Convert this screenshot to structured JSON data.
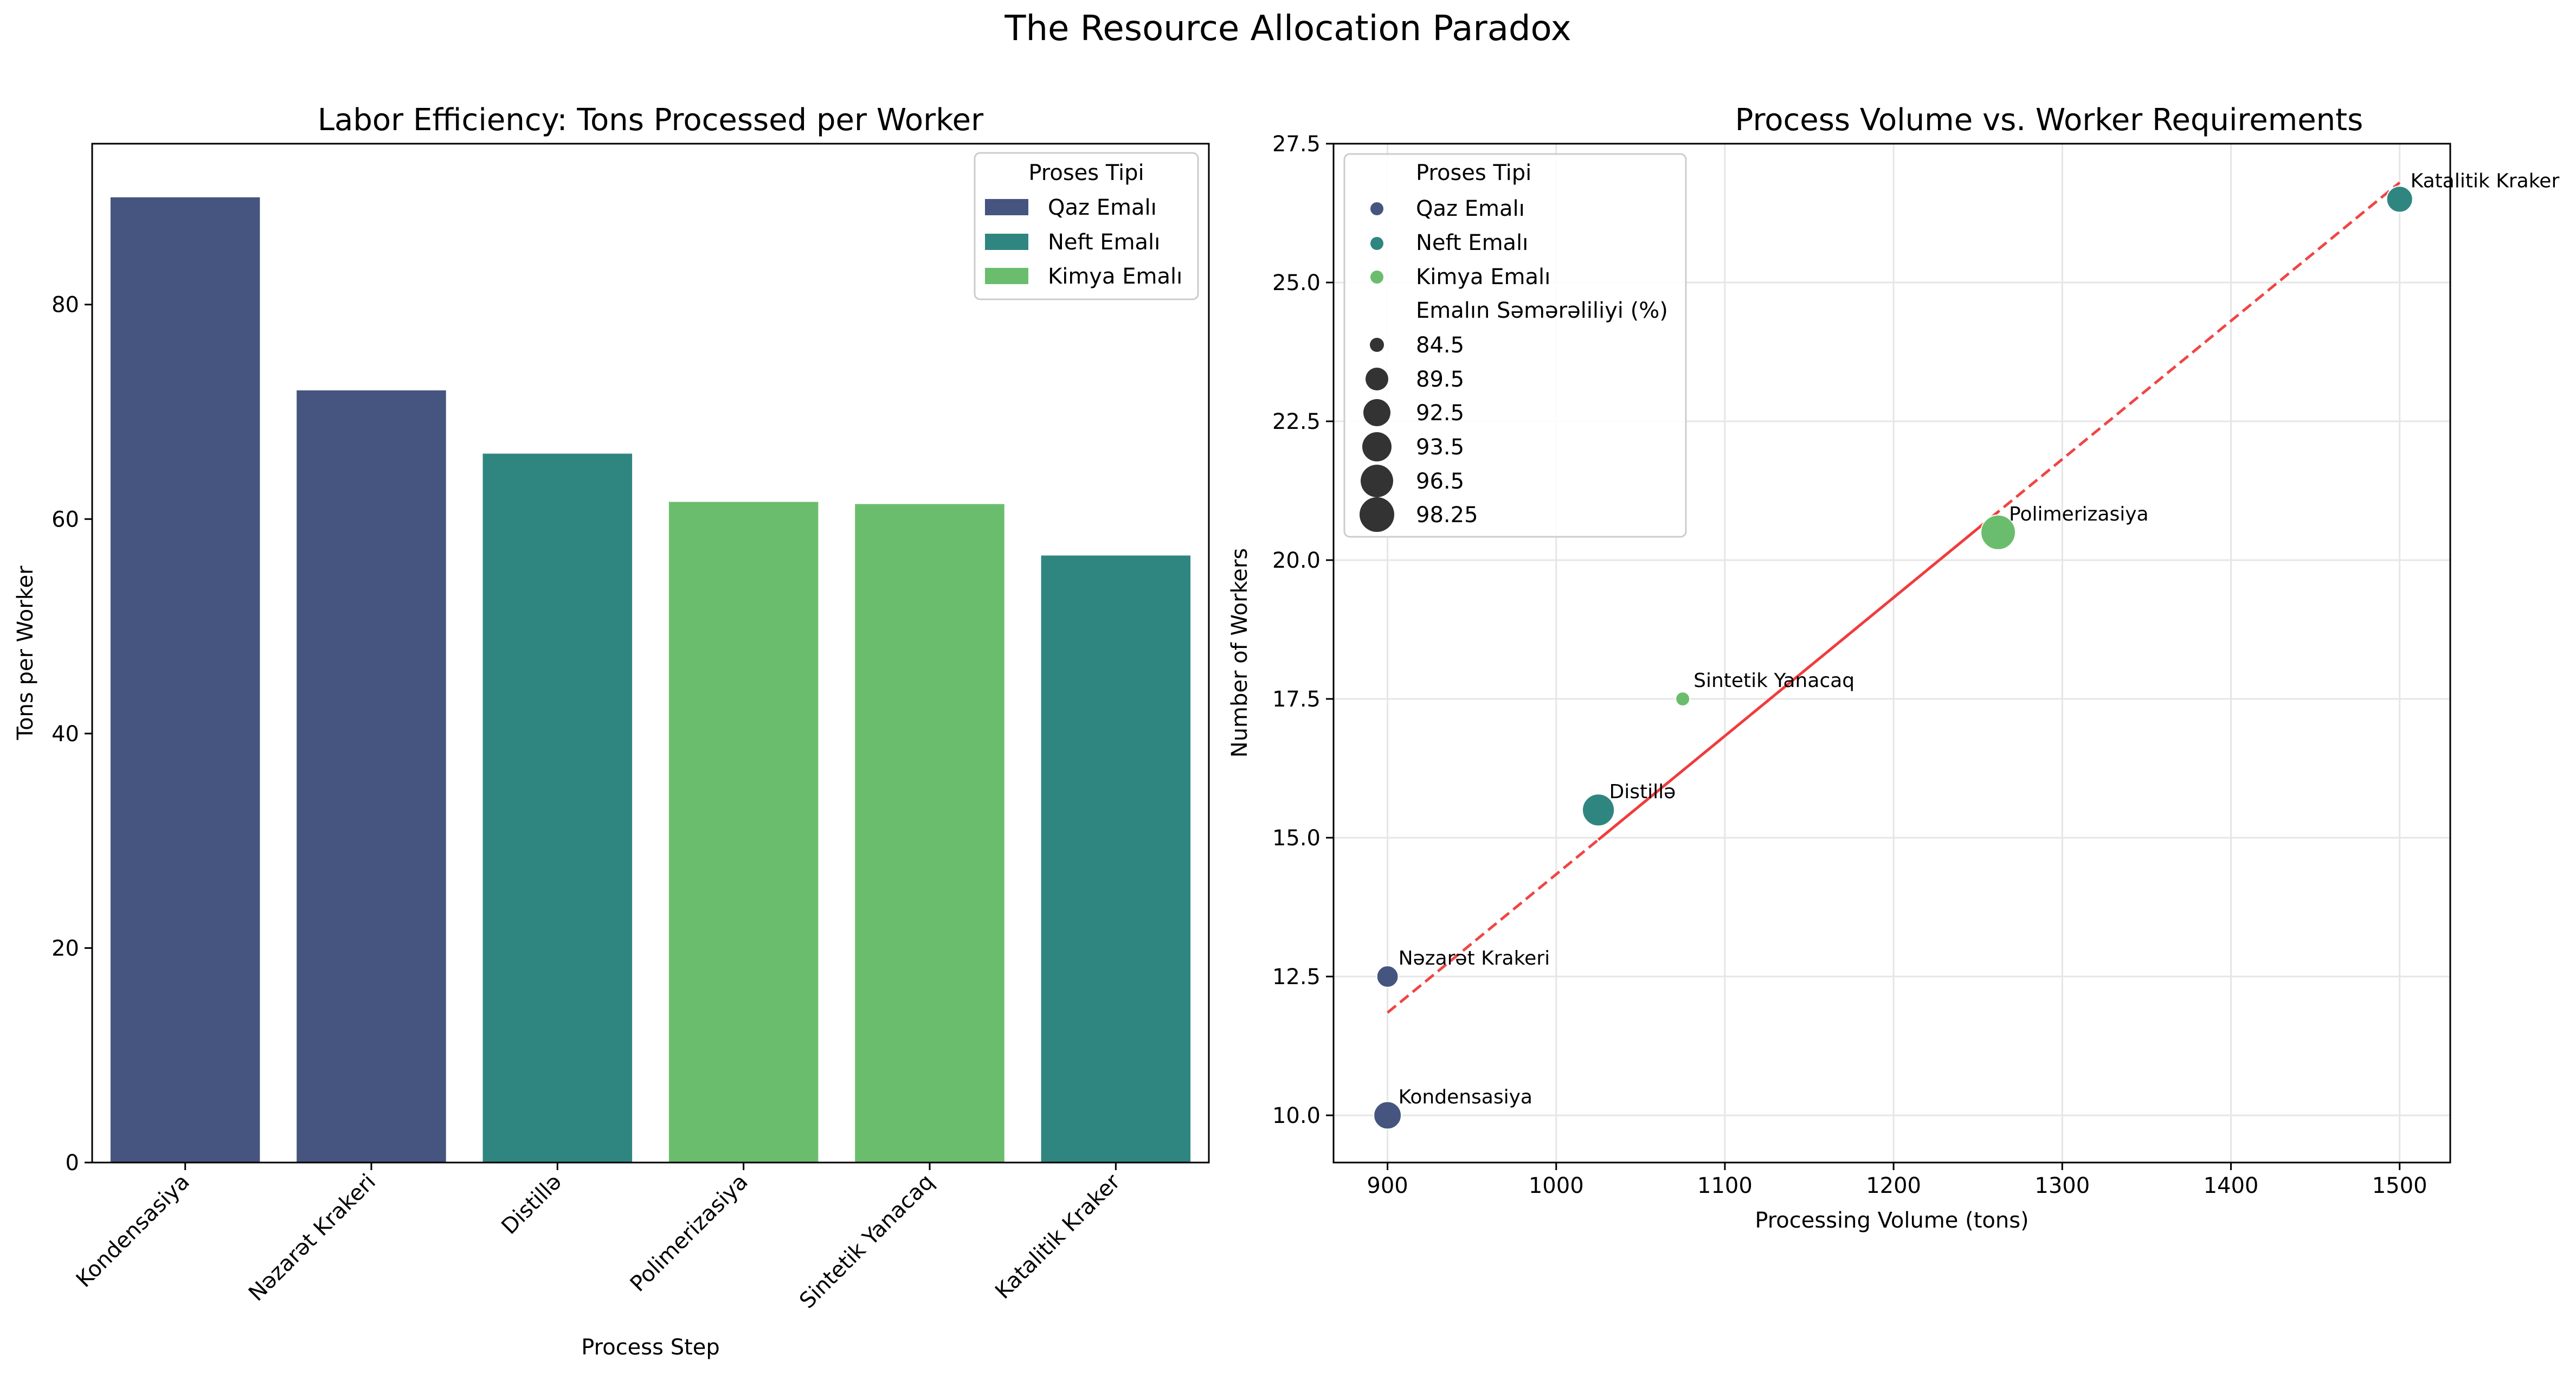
{
  "suptitle": "The Resource Allocation Paradox",
  "colors": {
    "qaz": "#46557f",
    "neft": "#2f8680",
    "kimya": "#6bbd6e",
    "trend_solid": "#f03c3c",
    "trend_dashed": "#f03c3c",
    "grid": "#e6e6e6"
  },
  "chart_data": [
    {
      "type": "bar",
      "title": "Labor Efficiency: Tons Processed per Worker",
      "xlabel": "Process Step",
      "ylabel": "Tons per Worker",
      "ylim": [
        0,
        95
      ],
      "yticks": [
        0,
        20,
        40,
        60,
        80
      ],
      "categories": [
        "Kondensasiya",
        "Nəzarət Krakeri",
        "Distillə",
        "Polimerizasiya",
        "Sintetik Yanacaq",
        "Katalitik Kraker"
      ],
      "values": [
        90.0,
        72.0,
        66.1,
        61.6,
        61.4,
        56.6
      ],
      "groups": [
        "Qaz Emalı",
        "Qaz Emalı",
        "Neft Emalı",
        "Kimya Emalı",
        "Kimya Emalı",
        "Neft Emalı"
      ],
      "grid": false,
      "legend": {
        "title": "Proses Tipi",
        "position": "top-right",
        "entries": [
          "Qaz Emalı",
          "Neft Emalı",
          "Kimya Emalı"
        ]
      }
    },
    {
      "type": "scatter",
      "title": "Process Volume vs. Worker Requirements",
      "xlabel": "Processing Volume (tons)",
      "ylabel": "Number of Workers",
      "xlim": [
        868,
        1530
      ],
      "ylim": [
        9.15,
        27.5
      ],
      "xticks": [
        900,
        1000,
        1100,
        1200,
        1300,
        1400,
        1500
      ],
      "yticks": [
        10.0,
        12.5,
        15.0,
        17.5,
        20.0,
        22.5,
        25.0,
        27.5
      ],
      "grid": true,
      "points": [
        {
          "label": "Kondensasiya",
          "x": 900,
          "y": 10.0,
          "group": "Qaz Emalı",
          "efficiency": 93.5
        },
        {
          "label": "Nəzarət Krakeri",
          "x": 900,
          "y": 12.5,
          "group": "Qaz Emalı",
          "efficiency": 89.5
        },
        {
          "label": "Distillə",
          "x": 1025,
          "y": 15.5,
          "group": "Neft Emalı",
          "efficiency": 96.5
        },
        {
          "label": "Sintetik Yanacaq",
          "x": 1075,
          "y": 17.5,
          "group": "Kimya Emalı",
          "efficiency": 84.5
        },
        {
          "label": "Polimerizasiya",
          "x": 1262,
          "y": 20.5,
          "group": "Kimya Emalı",
          "efficiency": 98.25
        },
        {
          "label": "Katalitik Kraker",
          "x": 1500,
          "y": 26.5,
          "group": "Neft Emalı",
          "efficiency": 92.5
        }
      ],
      "trend_line": {
        "x": [
          900,
          1500
        ],
        "y": [
          11.85,
          26.8
        ],
        "solid_x_range": [
          1025,
          1262
        ]
      },
      "legend": {
        "position": "top-left",
        "hue_title": "Proses Tipi",
        "hue_entries": [
          "Qaz Emalı",
          "Neft Emalı",
          "Kimya Emalı"
        ],
        "size_title": "Emalın Səmərəliliyi (%)",
        "size_entries": [
          84.5,
          89.5,
          92.5,
          93.5,
          96.5,
          98.25
        ]
      }
    }
  ]
}
